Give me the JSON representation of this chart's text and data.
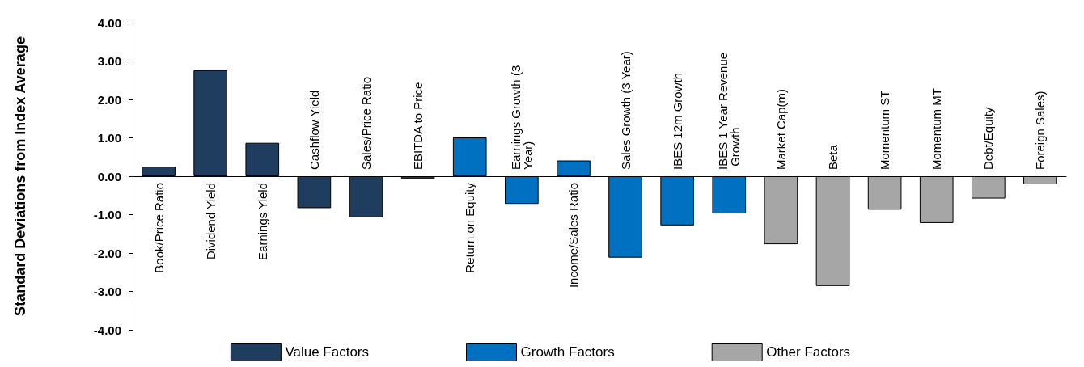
{
  "chart_data": {
    "type": "bar",
    "ylabel": "Standard Deviations from Index Average",
    "categories": [
      "Book/Price Ratio",
      "Dividend Yield",
      "Earnings Yield",
      "Cashflow Yield",
      "Sales/Price Ratio",
      "EBITDA to Price",
      "Return on Equity",
      "Earnings Growth (3 Year)",
      "Income/Sales Ratio",
      "Sales Growth (3 Year)",
      "IBES 12m Growth",
      "IBES 1 Year Revenue Growth",
      "Market Cap(m)",
      "Beta",
      "Momentum ST",
      "Momentum MT",
      "Debt/Equity",
      "Foreign Sales)"
    ],
    "series": [
      {
        "name": "Value Factors",
        "color": "#1f3d5e",
        "values": [
          0.25,
          2.76,
          0.87,
          -0.83,
          -1.07,
          -0.06,
          null,
          null,
          null,
          null,
          null,
          null,
          null,
          null,
          null,
          null,
          null,
          null
        ]
      },
      {
        "name": "Growth Factors",
        "color": "#0070c0",
        "values": [
          null,
          null,
          null,
          null,
          null,
          null,
          1.01,
          -0.72,
          0.41,
          -2.12,
          -1.28,
          -0.97,
          null,
          null,
          null,
          null,
          null,
          null
        ]
      },
      {
        "name": "Other Factors",
        "color": "#a6a6a6",
        "values": [
          null,
          null,
          null,
          null,
          null,
          null,
          null,
          null,
          null,
          null,
          null,
          null,
          -1.77,
          -2.86,
          -0.87,
          -1.22,
          -0.58,
          -0.21
        ]
      }
    ],
    "ylim": [
      -4,
      4
    ],
    "yticks": [
      {
        "value": -4,
        "label": "-4.00"
      },
      {
        "value": -3,
        "label": "-3.00"
      },
      {
        "value": -2,
        "label": "-2.00"
      },
      {
        "value": -1,
        "label": "-1.00"
      },
      {
        "value": 0,
        "label": "0.00"
      },
      {
        "value": 1,
        "label": "1.00"
      },
      {
        "value": 2,
        "label": "2.00"
      },
      {
        "value": 3,
        "label": "3.00"
      },
      {
        "value": 4,
        "label": "4.00"
      }
    ],
    "grid": false,
    "legend": "bottom"
  }
}
